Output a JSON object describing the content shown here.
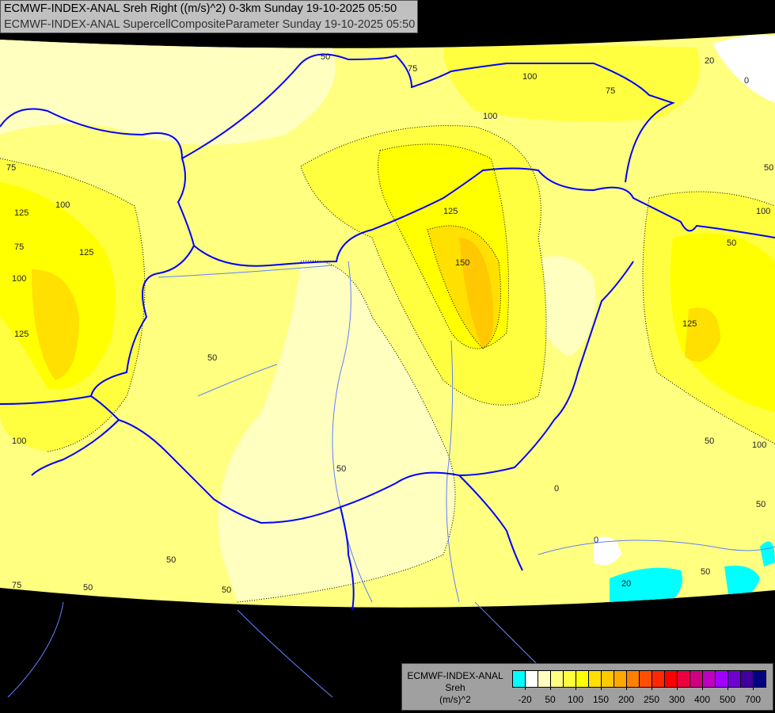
{
  "title": {
    "line1": "ECMWF-INDEX-ANAL Sreh Right ((m/s)^2) 0-3km Sunday 19-10-2025 05:50",
    "line2": "ECMWF-INDEX-ANAL SupercellCompositeParameter Sunday 19-10-2025 05:50"
  },
  "legend": {
    "model": "ECMWF-INDEX-ANAL",
    "variable": "Sreh",
    "unit": "(m/s)^2",
    "colors": [
      "#00ffff",
      "#ffffff",
      "#ffffc0",
      "#ffff80",
      "#ffff40",
      "#ffff00",
      "#ffe000",
      "#ffc800",
      "#ffa800",
      "#ff8000",
      "#ff5000",
      "#ff2800",
      "#ff0000",
      "#e80040",
      "#d00080",
      "#c000c0",
      "#a000ff",
      "#7000d0",
      "#4000a0",
      "#000080"
    ],
    "tick_labels": [
      "-20",
      "50",
      "100",
      "150",
      "200",
      "250",
      "300",
      "400",
      "500",
      "700"
    ]
  },
  "map": {
    "background": "#000000",
    "border_color": "#0000ff",
    "river_color": "#6080ff",
    "contour_labels": [
      "50",
      "75",
      "100",
      "75",
      "100",
      "125",
      "75",
      "125",
      "100",
      "75",
      "125",
      "100",
      "125",
      "150",
      "50",
      "125",
      "100",
      "50",
      "100",
      "50",
      "50",
      "50",
      "50",
      "0",
      "50",
      "75",
      "50",
      "50",
      "0",
      "50",
      "100",
      "20",
      "20",
      "0"
    ]
  }
}
